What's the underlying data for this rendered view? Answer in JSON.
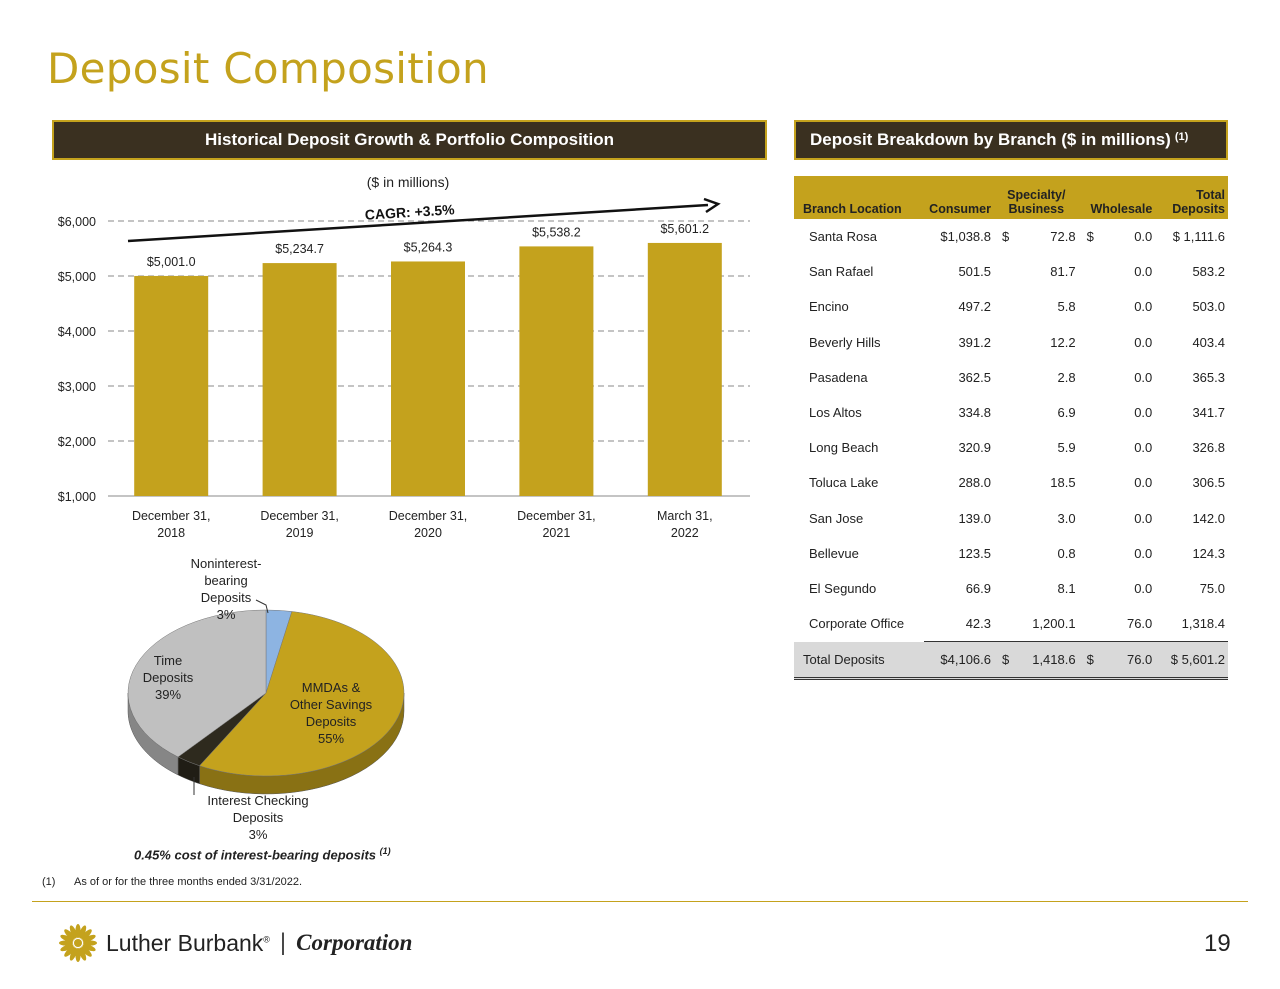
{
  "page_title": "Deposit Composition",
  "left_header": "Historical Deposit Growth & Portfolio Composition",
  "right_header": "Deposit Breakdown by Branch ($ in millions)",
  "right_header_sup": "(1)",
  "chart_data": [
    {
      "type": "bar",
      "title": "($ in millions)",
      "annotation": "CAGR: +3.5%",
      "categories": [
        "December 31,|2018",
        "December 31,|2019",
        "December 31,|2020",
        "December 31,|2021",
        "March 31,|2022"
      ],
      "values": [
        5001.0,
        5234.7,
        5264.3,
        5538.2,
        5601.2
      ],
      "data_labels": [
        "$5,001.0",
        "$5,234.7",
        "$5,264.3",
        "$5,538.2",
        "$5,601.2"
      ],
      "ylim": [
        1000,
        6000
      ],
      "yticks": [
        1000,
        2000,
        3000,
        4000,
        5000,
        6000
      ],
      "ytick_labels": [
        "$1,000",
        "$2,000",
        "$3,000",
        "$4,000",
        "$5,000",
        "$6,000"
      ],
      "bar_color": "#c4a21d",
      "grid": "dashed"
    },
    {
      "type": "pie",
      "slices": [
        {
          "label": "Noninterest-|bearing|Deposits|3%",
          "value": 3,
          "color": "#8db4e2"
        },
        {
          "label": "MMDAs &|Other Savings|Deposits|55%",
          "value": 55,
          "color": "#c4a21d"
        },
        {
          "label": "Interest Checking|Deposits|3%",
          "value": 3,
          "color": "#2e2a1e"
        },
        {
          "label": "Time|Deposits|39%",
          "value": 39,
          "color": "#c0c0c0"
        }
      ]
    }
  ],
  "cost_note": "0.45% cost of interest-bearing deposits",
  "cost_note_sup": "(1)",
  "table": {
    "headers": {
      "branch": "Branch Location",
      "consumer": "Consumer",
      "specialty_top": "Specialty/",
      "specialty_bottom": "Business",
      "wholesale": "Wholesale",
      "total_top": "Total",
      "total_bottom": "Deposits"
    },
    "rows": [
      {
        "loc": "Santa Rosa",
        "consumer": "$1,038.8",
        "d1": "$",
        "specialty": "72.8",
        "d2": "$",
        "wholesale": "0.0",
        "total": "$ 1,111.6"
      },
      {
        "loc": "San Rafael",
        "consumer": "501.5",
        "d1": "",
        "specialty": "81.7",
        "d2": "",
        "wholesale": "0.0",
        "total": "583.2"
      },
      {
        "loc": "Encino",
        "consumer": "497.2",
        "d1": "",
        "specialty": "5.8",
        "d2": "",
        "wholesale": "0.0",
        "total": "503.0"
      },
      {
        "loc": "Beverly Hills",
        "consumer": "391.2",
        "d1": "",
        "specialty": "12.2",
        "d2": "",
        "wholesale": "0.0",
        "total": "403.4"
      },
      {
        "loc": "Pasadena",
        "consumer": "362.5",
        "d1": "",
        "specialty": "2.8",
        "d2": "",
        "wholesale": "0.0",
        "total": "365.3"
      },
      {
        "loc": "Los Altos",
        "consumer": "334.8",
        "d1": "",
        "specialty": "6.9",
        "d2": "",
        "wholesale": "0.0",
        "total": "341.7"
      },
      {
        "loc": "Long Beach",
        "consumer": "320.9",
        "d1": "",
        "specialty": "5.9",
        "d2": "",
        "wholesale": "0.0",
        "total": "326.8"
      },
      {
        "loc": "Toluca Lake",
        "consumer": "288.0",
        "d1": "",
        "specialty": "18.5",
        "d2": "",
        "wholesale": "0.0",
        "total": "306.5"
      },
      {
        "loc": "San Jose",
        "consumer": "139.0",
        "d1": "",
        "specialty": "3.0",
        "d2": "",
        "wholesale": "0.0",
        "total": "142.0"
      },
      {
        "loc": "Bellevue",
        "consumer": "123.5",
        "d1": "",
        "specialty": "0.8",
        "d2": "",
        "wholesale": "0.0",
        "total": "124.3"
      },
      {
        "loc": "El Segundo",
        "consumer": "66.9",
        "d1": "",
        "specialty": "8.1",
        "d2": "",
        "wholesale": "0.0",
        "total": "75.0"
      },
      {
        "loc": "Corporate Office",
        "consumer": "42.3",
        "d1": "",
        "specialty": "1,200.1",
        "d2": "",
        "wholesale": "76.0",
        "total": "1,318.4"
      }
    ],
    "total_row": {
      "loc": "Total Deposits",
      "consumer": "$4,106.6",
      "d1": "$",
      "specialty": "1,418.6",
      "d2": "$",
      "wholesale": "76.0",
      "total": "$ 5,601.2"
    }
  },
  "footnote_num": "(1)",
  "footnote_text": "As of or for the three months ended 3/31/2022.",
  "logo": {
    "name": "Luther Burbank",
    "mark": "®",
    "corp": "Corporation"
  },
  "page_number": "19",
  "colors": {
    "gold": "#c4a21d",
    "dark": "#3a3020"
  }
}
